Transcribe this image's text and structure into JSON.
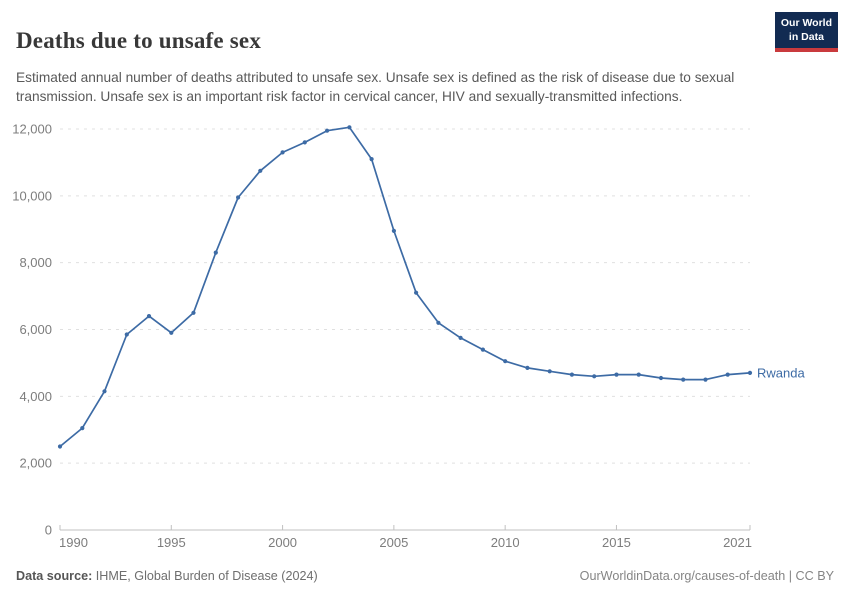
{
  "header": {
    "title": "Deaths due to unsafe sex",
    "subtitle": "Estimated annual number of deaths attributed to unsafe sex. Unsafe sex is defined as the risk of disease due to sexual transmission. Unsafe sex is an important risk factor in cervical cancer, HIV and sexually-transmitted infections.",
    "logo": {
      "line1": "Our World",
      "line2": "in Data",
      "bg_color": "#122b52",
      "accent_color": "#c93a3d"
    }
  },
  "chart_data": {
    "type": "line",
    "title": "Deaths due to unsafe sex",
    "xlabel": "",
    "ylabel": "",
    "x": [
      1990,
      1991,
      1992,
      1993,
      1994,
      1995,
      1996,
      1997,
      1998,
      1999,
      2000,
      2001,
      2002,
      2003,
      2004,
      2005,
      2006,
      2007,
      2008,
      2009,
      2010,
      2011,
      2012,
      2013,
      2014,
      2015,
      2016,
      2017,
      2018,
      2019,
      2020,
      2021
    ],
    "series": [
      {
        "name": "Rwanda",
        "color": "#3d6ba5",
        "values": [
          2500,
          3050,
          4150,
          5850,
          6400,
          5900,
          6500,
          8300,
          9950,
          10750,
          11300,
          11600,
          11950,
          12050,
          11100,
          8950,
          7100,
          6200,
          5750,
          5400,
          5050,
          4850,
          4750,
          4650,
          4600,
          4650,
          4650,
          4550,
          4500,
          4500,
          4650,
          4700
        ]
      }
    ],
    "xlim": [
      1990,
      2021
    ],
    "ylim": [
      0,
      12000
    ],
    "y_ticks": [
      0,
      2000,
      4000,
      6000,
      8000,
      10000,
      12000
    ],
    "x_ticks": [
      1990,
      1995,
      2000,
      2005,
      2010,
      2015,
      2021
    ],
    "grid": "horizontal-dashed",
    "legend_position": "end-of-line-label",
    "colors": {
      "gridline": "#e0e0e0",
      "axis": "#c0c0c0",
      "tick_label": "#7d7d7d"
    }
  },
  "footer": {
    "source_label": "Data source:",
    "source_text": " IHME, Global Burden of Disease (2024)",
    "link_text": "OurWorldinData.org/causes-of-death | CC BY"
  }
}
